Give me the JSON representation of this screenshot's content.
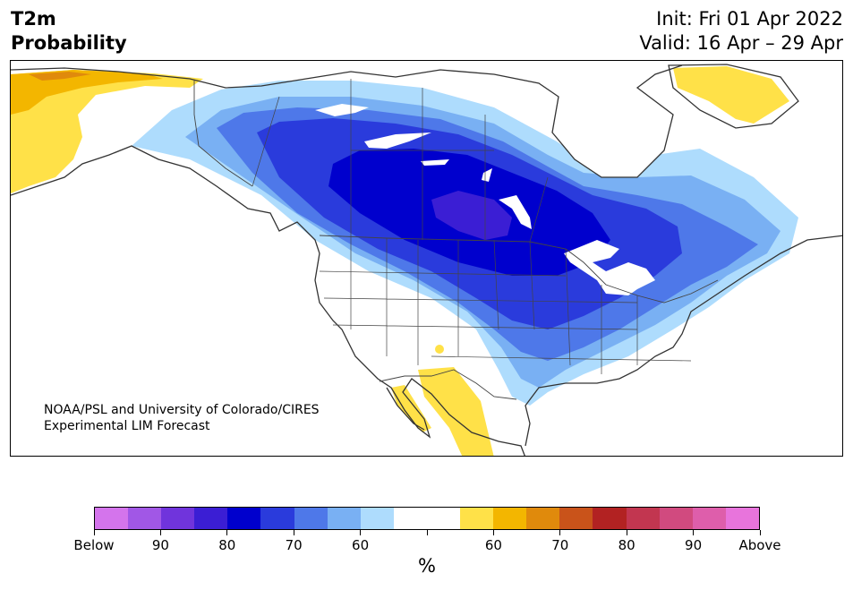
{
  "title": {
    "line1": "T2m",
    "line2": "Probability",
    "init": "Init: Fri 01 Apr 2022",
    "valid": "Valid: 16 Apr – 29 Apr"
  },
  "credit": {
    "line1": "NOAA/PSL and University of Colorado/CIRES",
    "line2": "Experimental LIM Forecast"
  },
  "colorbar": {
    "unit": "%",
    "colors": [
      "#d474ec",
      "#a157e6",
      "#7034dc",
      "#3b1ed4",
      "#0000cd",
      "#2a3bdc",
      "#4e78e9",
      "#79b0f3",
      "#aedcfd",
      "#ffffff",
      "#ffffff",
      "#ffe148",
      "#f3b600",
      "#e08a0c",
      "#c9531a",
      "#b22222",
      "#c23650",
      "#d14a7f",
      "#de5eab",
      "#e874dc"
    ],
    "tick_labels": [
      "Below",
      "90",
      "80",
      "70",
      "60",
      "",
      "60",
      "70",
      "80",
      "90",
      "Above"
    ]
  },
  "palette": {
    "below_90": "#a157e6",
    "below_80": "#3b1ed4",
    "below_75": "#0000cd",
    "below_70": "#2a3bdc",
    "below_65": "#4e78e9",
    "below_60": "#79b0f3",
    "below_55": "#aedcfd",
    "neutral": "#ffffff",
    "above_55": "#ffe148",
    "above_60": "#f3b600",
    "above_65": "#e08a0c",
    "coastline": "#333333"
  }
}
